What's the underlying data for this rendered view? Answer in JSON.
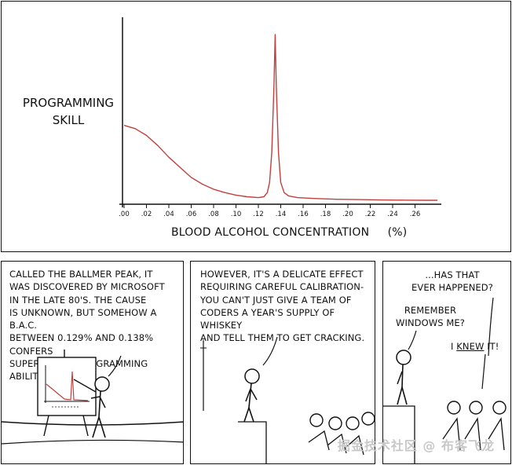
{
  "chart_data": {
    "type": "line",
    "ylabel_lines": [
      "PROGRAMMING",
      "SKILL"
    ],
    "xlabel": "BLOOD ALCOHOL CONCENTRATION",
    "xunit": "(%)",
    "x_ticks": [
      ".00",
      ".02",
      ".04",
      ".06",
      ".08",
      ".10",
      ".12",
      ".14",
      ".16",
      ".18",
      ".20",
      ".22",
      ".24",
      ".26"
    ],
    "xlim": [
      0.0,
      0.28
    ],
    "ylim": [
      0,
      100
    ],
    "grid": false,
    "line_color": "#c0403e",
    "series": [
      {
        "x": [
          0.0,
          0.01,
          0.02,
          0.03,
          0.04,
          0.05,
          0.06,
          0.07,
          0.08,
          0.09,
          0.1,
          0.11,
          0.12,
          0.125,
          0.128,
          0.13,
          0.132,
          0.134,
          0.135,
          0.136,
          0.138,
          0.14,
          0.143,
          0.147,
          0.155,
          0.17,
          0.19,
          0.21,
          0.23,
          0.25,
          0.27,
          0.28
        ],
        "y": [
          46,
          44,
          40,
          34,
          27,
          21,
          15,
          11,
          8,
          6,
          4.5,
          3.5,
          3,
          3.5,
          6,
          12,
          30,
          70,
          100,
          70,
          30,
          12,
          6,
          4,
          3,
          2.5,
          2,
          1.8,
          1.6,
          1.5,
          1.4,
          1.4
        ]
      }
    ]
  },
  "panel1": {
    "caption_lines": [
      "CALLED THE BALLMER PEAK, IT",
      "WAS DISCOVERED BY MICROSOFT",
      "IN THE LATE 80'S. THE CAUSE",
      "IS UNKNOWN, BUT SOMEHOW A B.A.C.",
      "BETWEEN 0.129% AND 0.138% CONFERS",
      "SUPERHUMAN PROGRAMMING ABILITY."
    ]
  },
  "panel2": {
    "caption_lines": [
      "HOWEVER, IT'S A DELICATE EFFECT",
      "REQUIRING CAREFUL CALIBRATION-",
      "YOU CAN'T JUST GIVE A TEAM OF",
      "CODERS A YEAR'S SUPPLY OF WHISKEY",
      "AND TELL THEM TO GET CRACKING."
    ]
  },
  "panel3": {
    "speech1_lines": [
      "...HAS THAT",
      "EVER HAPPENED?"
    ],
    "speech2_lines": [
      "REMEMBER",
      "WINDOWS ME?"
    ],
    "speech3_pre": "I ",
    "speech3_emph": "KNEW",
    "speech3_post": " IT!"
  },
  "watermark": "掘金技术社区 @ 布客飞龙"
}
